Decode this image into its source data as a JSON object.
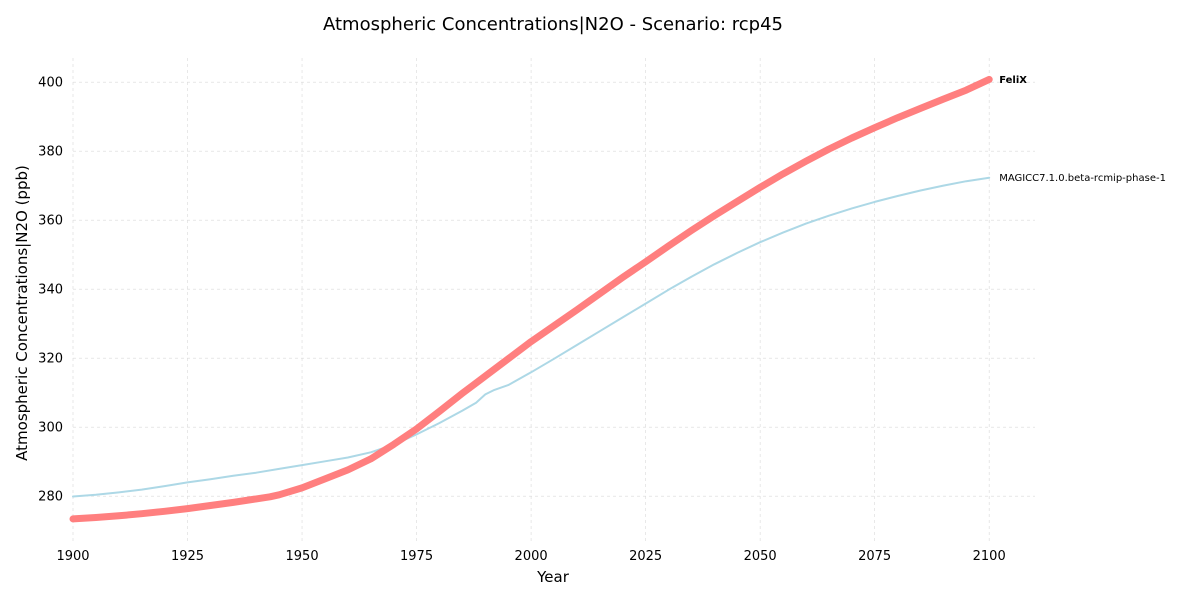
{
  "chart_data": {
    "type": "line",
    "title": "Atmospheric Concentrations|N2O - Scenario: rcp45",
    "xlabel": "Year",
    "ylabel": "Atmospheric Concentrations|N2O (ppb)",
    "xlim": [
      1900,
      2110
    ],
    "ylim": [
      267,
      407
    ],
    "xticks": [
      1900,
      1925,
      1950,
      1975,
      2000,
      2025,
      2050,
      2075,
      2100
    ],
    "yticks": [
      280,
      300,
      320,
      340,
      360,
      380,
      400
    ],
    "grid": true,
    "legend": "none",
    "series": [
      {
        "name": "MAGICC7.1.0.beta-rcmip-phase-1",
        "color": "#add8e6",
        "bold_label": false,
        "x": [
          1900,
          1905,
          1910,
          1915,
          1920,
          1925,
          1930,
          1935,
          1940,
          1945,
          1950,
          1955,
          1960,
          1965,
          1970,
          1975,
          1980,
          1985,
          1988,
          1990,
          1992,
          1995,
          2000,
          2005,
          2010,
          2015,
          2020,
          2025,
          2030,
          2035,
          2040,
          2045,
          2050,
          2055,
          2060,
          2065,
          2070,
          2075,
          2080,
          2085,
          2090,
          2095,
          2100
        ],
        "y": [
          279.9,
          280.4,
          281.1,
          281.9,
          282.9,
          284.0,
          284.9,
          285.9,
          286.8,
          287.9,
          289.0,
          290.1,
          291.2,
          292.7,
          294.9,
          297.9,
          301.2,
          304.8,
          307.1,
          309.5,
          310.8,
          312.2,
          315.9,
          319.8,
          323.8,
          327.8,
          331.8,
          335.8,
          339.8,
          343.6,
          347.2,
          350.5,
          353.6,
          356.4,
          359.0,
          361.3,
          363.4,
          365.3,
          367.0,
          368.6,
          370.0,
          371.3,
          372.3
        ]
      },
      {
        "name": "FeliX",
        "color": "#ff7f7f",
        "bold_label": true,
        "x": [
          1900,
          1905,
          1910,
          1915,
          1920,
          1925,
          1930,
          1935,
          1940,
          1943,
          1945,
          1950,
          1955,
          1960,
          1965,
          1970,
          1975,
          1980,
          1985,
          1990,
          1995,
          2000,
          2005,
          2010,
          2015,
          2020,
          2025,
          2030,
          2035,
          2040,
          2045,
          2050,
          2055,
          2060,
          2065,
          2070,
          2075,
          2080,
          2085,
          2090,
          2095,
          2100
        ],
        "y": [
          273.4,
          273.8,
          274.3,
          274.9,
          275.6,
          276.4,
          277.3,
          278.2,
          279.2,
          279.8,
          280.4,
          282.4,
          285.0,
          287.6,
          290.8,
          295.0,
          299.5,
          304.6,
          309.8,
          314.8,
          319.8,
          324.8,
          329.4,
          334.0,
          338.7,
          343.4,
          347.9,
          352.5,
          357.0,
          361.3,
          365.4,
          369.5,
          373.4,
          377.1,
          380.6,
          383.8,
          386.8,
          389.7,
          392.4,
          395.1,
          397.7,
          400.8
        ]
      }
    ]
  }
}
